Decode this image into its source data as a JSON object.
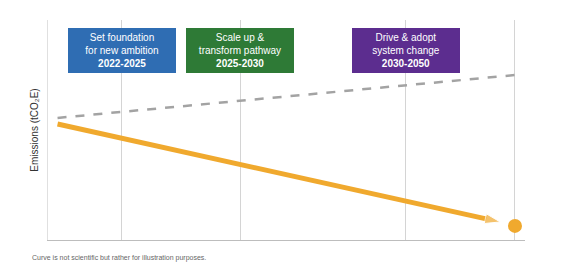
{
  "chart_data": {
    "type": "line",
    "y_label": "Emissions (tCO₂E)",
    "note": "Curve is not scientific but rather for illustration purposes.",
    "xlim": [
      0,
      100
    ],
    "ylim": [
      0,
      100
    ],
    "xticks": [
      15.5,
      40.3,
      75,
      97.9
    ],
    "yticks": [],
    "grid": true,
    "tick_labels": false,
    "phases": [
      {
        "lines": [
          "Set foundation",
          "for new ambition"
        ],
        "period": "2022-2025",
        "color": "#2f6db3"
      },
      {
        "lines": [
          "Scale up &",
          "transform pathway"
        ],
        "period": "2025-2030",
        "color": "#2e7a36"
      },
      {
        "lines": [
          "Drive & adopt",
          "system change"
        ],
        "period": "2030-2050",
        "color": "#5c2d8f"
      }
    ],
    "series": [
      {
        "x": [
          2,
          98
        ],
        "values": [
          55.5,
          75
        ],
        "color": "#a3a3a3",
        "line_style": "dashed"
      },
      {
        "x": [
          2,
          94.8
        ],
        "values": [
          52.7,
          8.2
        ],
        "color": "#f0a92e",
        "line_style": "solid",
        "marker": "arrow"
      },
      {
        "x": [
          97.9
        ],
        "values": [
          6.4
        ],
        "color": "#f0a92e",
        "type": "scatter",
        "marker": "circle"
      }
    ]
  }
}
